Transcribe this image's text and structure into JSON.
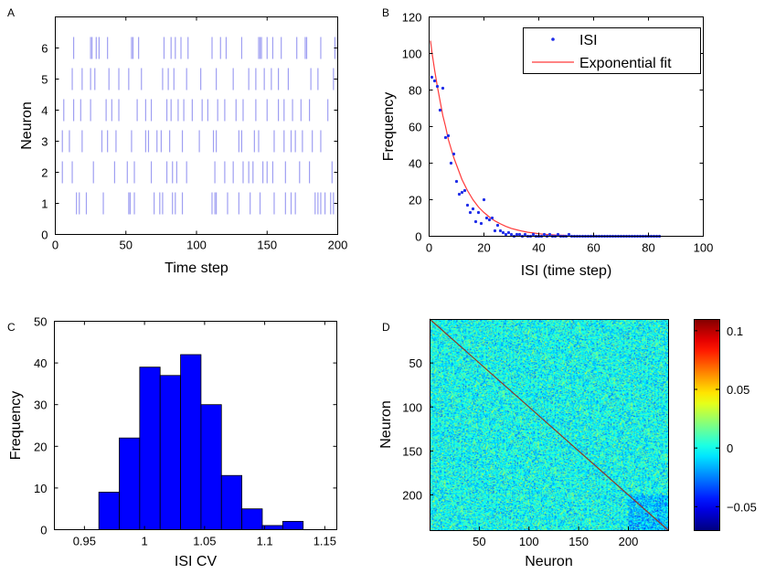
{
  "colors": {
    "raster": "#9f9ff2",
    "scatter": "#1f2de8",
    "fit": "#ff3a3a",
    "hist": "#0000ff",
    "histEdge": "#000000",
    "diagonal": "#8b3a2a"
  },
  "chart_data": [
    {
      "id": "A",
      "type": "scatter",
      "panel_label": "A",
      "xlabel": "Time step",
      "ylabel": "Neuron",
      "xlim": [
        0,
        200
      ],
      "ylim": [
        0,
        7
      ],
      "xticks": [
        0,
        50,
        100,
        150,
        200
      ],
      "yticks": [
        0,
        1,
        2,
        3,
        4,
        5,
        6
      ],
      "series": [
        {
          "neuron": 1,
          "spikes": [
            15,
            17,
            22,
            34,
            52,
            53,
            56,
            70,
            74,
            76,
            83,
            85,
            90,
            111,
            113,
            114,
            122,
            130,
            138,
            145,
            155,
            163,
            167,
            170,
            184,
            186,
            188,
            191,
            195,
            197
          ]
        },
        {
          "neuron": 2,
          "spikes": [
            5,
            12,
            27,
            42,
            51,
            56,
            68,
            79,
            83,
            86,
            93,
            113,
            120,
            126,
            133,
            137,
            140,
            147,
            150,
            154,
            163,
            173,
            180,
            196
          ]
        },
        {
          "neuron": 3,
          "spikes": [
            5,
            10,
            19,
            33,
            37,
            43,
            54,
            64,
            66,
            72,
            75,
            81,
            90,
            102,
            112,
            114,
            130,
            132,
            141,
            144,
            155,
            162,
            167,
            170,
            175,
            182,
            188
          ]
        },
        {
          "neuron": 4,
          "spikes": [
            6,
            13,
            18,
            25,
            36,
            40,
            45,
            58,
            64,
            68,
            79,
            82,
            87,
            91,
            97,
            104,
            108,
            115,
            120,
            128,
            133,
            142,
            150,
            158,
            162,
            168,
            174,
            180,
            193
          ]
        },
        {
          "neuron": 5,
          "spikes": [
            12,
            19,
            25,
            28,
            38,
            45,
            52,
            61,
            76,
            80,
            84,
            93,
            103,
            114,
            126,
            137,
            142,
            148,
            153,
            158,
            165,
            181,
            186,
            197
          ]
        },
        {
          "neuron": 6,
          "spikes": [
            13,
            25,
            26,
            29,
            31,
            37,
            54,
            55,
            59,
            77,
            82,
            85,
            89,
            94,
            111,
            117,
            121,
            132,
            144,
            145,
            146,
            150,
            154,
            160,
            171,
            177,
            178,
            188,
            198
          ]
        }
      ]
    },
    {
      "id": "B",
      "type": "scatter",
      "panel_label": "B",
      "xlabel": "ISI (time step)",
      "ylabel": "Frequency",
      "xlim": [
        0,
        100
      ],
      "ylim": [
        0,
        120
      ],
      "xticks": [
        0,
        20,
        40,
        60,
        80,
        100
      ],
      "yticks": [
        0,
        20,
        40,
        60,
        80,
        100,
        120
      ],
      "legend": [
        "ISI",
        "Exponential fit"
      ],
      "legend_position": "top-right",
      "series": [
        {
          "name": "ISI",
          "x": [
            1,
            2,
            3,
            4,
            5,
            6,
            7,
            8,
            9,
            10,
            11,
            12,
            13,
            14,
            15,
            16,
            17,
            18,
            19,
            20,
            21,
            22,
            23,
            24,
            25,
            26,
            27,
            28,
            29,
            30,
            31,
            32,
            33,
            34,
            35,
            36,
            37,
            38,
            39,
            40,
            41,
            42,
            43,
            44,
            45,
            46,
            47,
            48,
            49,
            50,
            51,
            52,
            53,
            54,
            55,
            56,
            57,
            58,
            59,
            60,
            61,
            62,
            63,
            64,
            65,
            66,
            67,
            68,
            69,
            70,
            71,
            72,
            73,
            74,
            75,
            76,
            77,
            78,
            79,
            80,
            81,
            82,
            83,
            84
          ],
          "y": [
            87,
            85,
            82,
            69,
            81,
            54,
            55,
            40,
            45,
            30,
            23,
            24,
            25,
            17,
            13,
            15,
            8,
            13,
            7,
            20,
            10,
            9,
            10,
            3,
            6,
            3,
            2,
            1,
            2,
            1,
            0,
            1,
            1,
            0,
            1,
            0,
            0,
            1,
            0,
            0,
            0,
            1,
            0,
            1,
            0,
            0,
            1,
            0,
            0,
            0,
            1,
            0,
            0,
            0,
            0,
            0,
            0,
            0,
            0,
            0,
            0,
            0,
            0,
            0,
            0,
            0,
            0,
            0,
            0,
            0,
            0,
            0,
            0,
            0,
            0,
            0,
            0,
            0,
            0,
            0,
            0,
            0,
            0,
            0
          ]
        },
        {
          "name": "Exponential fit",
          "x": [
            0.5,
            1,
            2,
            3,
            4,
            5,
            6,
            7,
            8,
            9,
            10,
            12,
            14,
            16,
            18,
            20,
            22,
            24,
            26,
            28,
            30,
            32,
            34,
            36,
            38,
            40,
            42,
            44,
            46,
            48,
            50
          ],
          "y": [
            107,
            101,
            91,
            82,
            74,
            66,
            60,
            53,
            48,
            43,
            39,
            31,
            25,
            20,
            16,
            13,
            10.5,
            8.4,
            6.8,
            5.4,
            4.3,
            3.5,
            2.8,
            2.2,
            1.8,
            1.4,
            1.1,
            0.9,
            0.7,
            0.6,
            0.5
          ]
        }
      ]
    },
    {
      "id": "C",
      "type": "bar",
      "panel_label": "C",
      "xlabel": "ISI CV",
      "ylabel": "Frequency",
      "xlim": [
        0.925,
        1.16
      ],
      "ylim": [
        0,
        50
      ],
      "xticks": [
        0.95,
        1,
        1.05,
        1.1,
        1.15
      ],
      "xtick_labels": [
        "0.95",
        "1",
        "1.05",
        "1.1",
        "1.15"
      ],
      "yticks": [
        0,
        10,
        20,
        30,
        40,
        50
      ],
      "bin_edges": [
        0.962,
        0.979,
        0.996,
        1.013,
        1.03,
        1.047,
        1.064,
        1.081,
        1.098,
        1.115,
        1.132,
        1.149
      ],
      "values": [
        9,
        22,
        39,
        37,
        42,
        30,
        13,
        5,
        1,
        2,
        0
      ]
    },
    {
      "id": "D",
      "type": "heatmap",
      "panel_label": "D",
      "xlabel": "Neuron",
      "ylabel": "Neuron",
      "xlim": [
        0,
        240
      ],
      "ylim": [
        0,
        240
      ],
      "xticks": [
        50,
        100,
        150,
        200
      ],
      "yticks": [
        50,
        100,
        150,
        200
      ],
      "colorbar_ticks": [
        0.1,
        0.05,
        0,
        -0.05
      ],
      "colorbar_tick_labels": [
        "0.1",
        "0.05",
        "0",
        "−0.05"
      ],
      "colorbar_range": [
        -0.07,
        0.11
      ],
      "colormap": "jet",
      "diagonal": true,
      "inhibitory_block_start": 200
    }
  ]
}
